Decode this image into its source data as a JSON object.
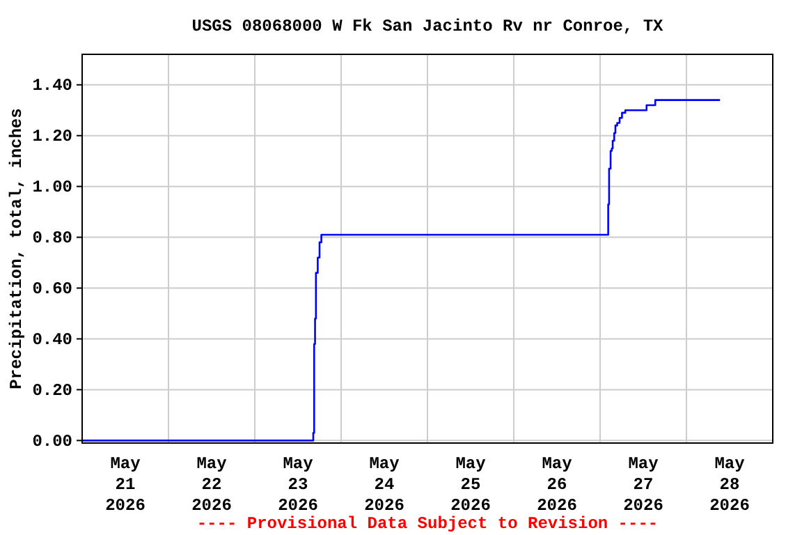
{
  "chart_data": {
    "type": "step",
    "title": "USGS 08068000 W Fk San Jacinto Rv nr Conroe, TX",
    "ylabel": "Precipitation, total, inches",
    "annotations": [
      "---- Provisional Data Subject to Revision ----"
    ],
    "x": [
      "2026-05-21T00:00",
      "2026-05-23T16:00",
      "2026-05-23T16:15",
      "2026-05-23T16:30",
      "2026-05-23T16:45",
      "2026-05-23T17:00",
      "2026-05-23T17:30",
      "2026-05-23T18:00",
      "2026-05-23T18:30",
      "2026-05-27T02:15",
      "2026-05-27T02:30",
      "2026-05-27T02:55",
      "2026-05-27T03:15",
      "2026-05-27T03:30",
      "2026-05-27T03:55",
      "2026-05-27T04:15",
      "2026-05-27T04:45",
      "2026-05-27T05:25",
      "2026-05-27T06:05",
      "2026-05-27T07:00",
      "2026-05-27T12:55",
      "2026-05-27T15:20",
      "2026-05-28T09:20"
    ],
    "series": [
      {
        "color": "#0000ff",
        "values": [
          0,
          0,
          0.03,
          0.38,
          0.48,
          0.66,
          0.72,
          0.78,
          0.81,
          0.93,
          1.07,
          1.14,
          1.15,
          1.18,
          1.21,
          1.24,
          1.25,
          1.27,
          1.29,
          1.3,
          1.32,
          1.34,
          1.34
        ]
      }
    ],
    "xlim": [
      "2026-05-21T00:00",
      "2026-05-29T00:00"
    ],
    "xticks": [
      {
        "value": "2026-05-21T12:00",
        "label": "May\n21\n2026"
      },
      {
        "value": "2026-05-22T00:00",
        "label": null
      },
      {
        "value": "2026-05-22T12:00",
        "label": "May\n22\n2026"
      },
      {
        "value": "2026-05-23T00:00",
        "label": null
      },
      {
        "value": "2026-05-23T12:00",
        "label": "May\n23\n2026"
      },
      {
        "value": "2026-05-24T00:00",
        "label": null
      },
      {
        "value": "2026-05-24T12:00",
        "label": "May\n24\n2026"
      },
      {
        "value": "2026-05-25T00:00",
        "label": null
      },
      {
        "value": "2026-05-25T12:00",
        "label": "May\n25\n2026"
      },
      {
        "value": "2026-05-26T00:00",
        "label": null
      },
      {
        "value": "2026-05-26T12:00",
        "label": "May\n26\n2026"
      },
      {
        "value": "2026-05-27T00:00",
        "label": null
      },
      {
        "value": "2026-05-27T12:00",
        "label": "May\n27\n2026"
      },
      {
        "value": "2026-05-28T00:00",
        "label": null
      },
      {
        "value": "2026-05-28T12:00",
        "label": "May\n28\n2026"
      }
    ],
    "ylim": [
      -0.01,
      1.52
    ],
    "yticks": [
      {
        "value": 0,
        "label": "0.00"
      },
      {
        "value": 0.2,
        "label": "0.20"
      },
      {
        "value": 0.4,
        "label": "0.40"
      },
      {
        "value": 0.6,
        "label": "0.60"
      },
      {
        "value": 0.8,
        "label": "0.80"
      },
      {
        "value": 1.0,
        "label": "1.00"
      },
      {
        "value": 1.2,
        "label": "1.20"
      },
      {
        "value": 1.4,
        "label": "1.40"
      }
    ],
    "grid": true
  }
}
